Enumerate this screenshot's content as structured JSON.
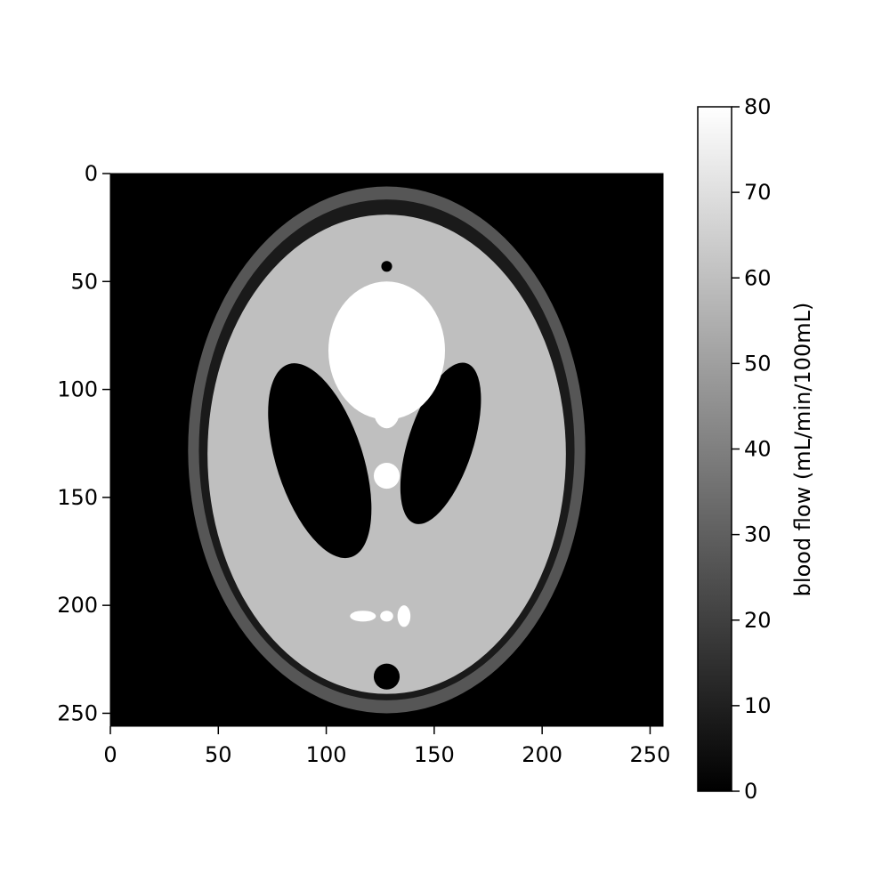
{
  "chart_data": {
    "type": "heatmap",
    "title": "",
    "xlabel": "",
    "ylabel": "",
    "xlim": [
      0,
      256
    ],
    "ylim": [
      256,
      0
    ],
    "x_ticks": [
      "0",
      "50",
      "100",
      "150",
      "200",
      "250"
    ],
    "y_ticks": [
      "0",
      "50",
      "100",
      "150",
      "200",
      "250"
    ],
    "colormap": "gray",
    "colorbar": {
      "label": "blood flow (mL/min/100mL)",
      "range": [
        0,
        80
      ],
      "ticks": [
        "0",
        "10",
        "20",
        "30",
        "40",
        "50",
        "60",
        "70",
        "80"
      ]
    },
    "regions": [
      {
        "shape": "ellipse",
        "cx": 128,
        "cy": 128,
        "rx": 92,
        "ry": 122,
        "value": 27
      },
      {
        "shape": "ellipse",
        "cx": 128,
        "cy": 128,
        "rx": 87,
        "ry": 116,
        "value": 8
      },
      {
        "shape": "ellipse",
        "cx": 128,
        "cy": 130,
        "rx": 83,
        "ry": 111,
        "value": 60
      },
      {
        "shape": "ellipse",
        "cx": 97,
        "cy": 133,
        "rx": 20,
        "ry": 47,
        "angle": -18,
        "value": 0
      },
      {
        "shape": "ellipse",
        "cx": 153,
        "cy": 125,
        "rx": 15,
        "ry": 39,
        "angle": 18,
        "value": 0
      },
      {
        "shape": "ellipse",
        "cx": 128,
        "cy": 82,
        "rx": 27,
        "ry": 32,
        "value": 80
      },
      {
        "shape": "ellipse",
        "cx": 128,
        "cy": 110,
        "rx": 6,
        "ry": 8,
        "value": 80
      },
      {
        "shape": "ellipse",
        "cx": 128,
        "cy": 140,
        "rx": 6,
        "ry": 6,
        "value": 80
      },
      {
        "shape": "ellipse",
        "cx": 117,
        "cy": 205,
        "rx": 6,
        "ry": 2.5,
        "value": 80
      },
      {
        "shape": "ellipse",
        "cx": 128,
        "cy": 205,
        "rx": 3,
        "ry": 2.5,
        "value": 80
      },
      {
        "shape": "ellipse",
        "cx": 136,
        "cy": 205,
        "rx": 3,
        "ry": 5,
        "value": 80
      },
      {
        "shape": "ellipse",
        "cx": 128,
        "cy": 43,
        "rx": 2.5,
        "ry": 2.5,
        "value": 0
      },
      {
        "shape": "ellipse",
        "cx": 128,
        "cy": 233,
        "rx": 6,
        "ry": 6,
        "value": 0
      }
    ]
  }
}
